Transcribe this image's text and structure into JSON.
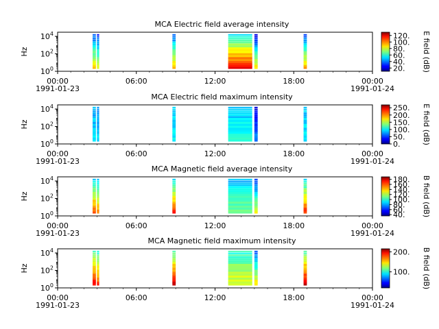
{
  "figure": {
    "x_ticks": [
      "00:00",
      "06:00",
      "12:00",
      "18:00",
      "00:00"
    ],
    "x_start_date": "1991-01-23",
    "x_end_date": "1991-01-24",
    "y_label": "Hz",
    "colormap": "jet"
  },
  "chart_data": [
    {
      "type": "heatmap",
      "title": "MCA  Electric field average intensity",
      "xlabel": "",
      "ylabel": "Hz",
      "ylim": [
        1,
        30000
      ],
      "yscale": "log",
      "yticks": [
        "10^0",
        "10^2",
        "10^4"
      ],
      "xlim": [
        "1991-01-23 00:00",
        "1991-01-24 00:00"
      ],
      "xticks": [
        "00:00",
        "06:00",
        "12:00",
        "18:00",
        "00:00"
      ],
      "colorbar": {
        "label": "E field (dB)",
        "ticks": [
          "20.",
          "40.",
          "60.",
          "80.",
          "100.",
          "120."
        ],
        "range": [
          10,
          130
        ]
      },
      "data_intervals": [
        {
          "start": "02:40",
          "end": "02:55",
          "low_freq_db": 90,
          "high_freq_db": 35
        },
        {
          "start": "03:00",
          "end": "03:10",
          "low_freq_db": 85,
          "high_freq_db": 30
        },
        {
          "start": "08:45",
          "end": "09:00",
          "low_freq_db": 95,
          "high_freq_db": 35
        },
        {
          "start": "13:00",
          "end": "14:50",
          "low_freq_db": 115,
          "high_freq_db": 55
        },
        {
          "start": "15:00",
          "end": "15:15",
          "low_freq_db": 90,
          "high_freq_db": 20
        },
        {
          "start": "18:45",
          "end": "19:00",
          "low_freq_db": 95,
          "high_freq_db": 35
        }
      ]
    },
    {
      "type": "heatmap",
      "title": "MCA  Electric field maximum intensity",
      "xlabel": "",
      "ylabel": "Hz",
      "ylim": [
        1,
        30000
      ],
      "yscale": "log",
      "yticks": [
        "10^0",
        "10^2",
        "10^4"
      ],
      "xlim": [
        "1991-01-23 00:00",
        "1991-01-24 00:00"
      ],
      "xticks": [
        "00:00",
        "06:00",
        "12:00",
        "18:00",
        "00:00"
      ],
      "colorbar": {
        "label": "E field (dB)",
        "ticks": [
          "0.",
          "50.",
          "100.",
          "150.",
          "200.",
          "250."
        ],
        "range": [
          0,
          270
        ]
      },
      "data_intervals": [
        {
          "start": "02:40",
          "end": "02:55",
          "low_freq_db": 95,
          "high_freq_db": 80
        },
        {
          "start": "03:00",
          "end": "03:10",
          "low_freq_db": 90,
          "high_freq_db": 70
        },
        {
          "start": "08:45",
          "end": "09:00",
          "low_freq_db": 100,
          "high_freq_db": 85
        },
        {
          "start": "13:00",
          "end": "14:50",
          "low_freq_db": 110,
          "high_freq_db": 85
        },
        {
          "start": "15:00",
          "end": "15:15",
          "low_freq_db": 70,
          "high_freq_db": 30
        },
        {
          "start": "18:45",
          "end": "19:00",
          "low_freq_db": 100,
          "high_freq_db": 85
        }
      ]
    },
    {
      "type": "heatmap",
      "title": "MCA  Magnetic field average intensity",
      "xlabel": "",
      "ylabel": "Hz",
      "ylim": [
        1,
        30000
      ],
      "yscale": "log",
      "yticks": [
        "10^0",
        "10^2",
        "10^4"
      ],
      "xlim": [
        "1991-01-23 00:00",
        "1991-01-24 00:00"
      ],
      "xticks": [
        "00:00",
        "06:00",
        "12:00",
        "18:00",
        "00:00"
      ],
      "colorbar": {
        "label": "B field (dB)",
        "ticks": [
          "40.",
          "60.",
          "80.",
          "100.",
          "120.",
          "140.",
          "160.",
          "180."
        ],
        "range": [
          35,
          190
        ]
      },
      "data_intervals": [
        {
          "start": "02:40",
          "end": "02:55",
          "low_freq_db": 160,
          "high_freq_db": 90
        },
        {
          "start": "03:00",
          "end": "03:10",
          "low_freq_db": 150,
          "high_freq_db": 85
        },
        {
          "start": "08:45",
          "end": "09:00",
          "low_freq_db": 165,
          "high_freq_db": 90
        },
        {
          "start": "13:00",
          "end": "14:50",
          "low_freq_db": 115,
          "high_freq_db": 80
        },
        {
          "start": "15:00",
          "end": "15:15",
          "low_freq_db": 130,
          "high_freq_db": 60
        },
        {
          "start": "18:45",
          "end": "19:00",
          "low_freq_db": 165,
          "high_freq_db": 90
        }
      ]
    },
    {
      "type": "heatmap",
      "title": "MCA  Magnetic field maximum intensity",
      "xlabel": "",
      "ylabel": "Hz",
      "ylim": [
        1,
        30000
      ],
      "yscale": "log",
      "yticks": [
        "10^0",
        "10^2",
        "10^4"
      ],
      "xlim": [
        "1991-01-23 00:00",
        "1991-01-24 00:00"
      ],
      "xticks": [
        "00:00",
        "06:00",
        "12:00",
        "18:00",
        "00:00"
      ],
      "colorbar": {
        "label": "B field (dB)",
        "ticks": [
          "100.",
          "200."
        ],
        "range": [
          20,
          215
        ]
      },
      "data_intervals": [
        {
          "start": "02:40",
          "end": "02:55",
          "low_freq_db": 190,
          "high_freq_db": 110
        },
        {
          "start": "03:00",
          "end": "03:10",
          "low_freq_db": 180,
          "high_freq_db": 100
        },
        {
          "start": "08:45",
          "end": "09:00",
          "low_freq_db": 200,
          "high_freq_db": 110
        },
        {
          "start": "13:00",
          "end": "14:50",
          "low_freq_db": 140,
          "high_freq_db": 100
        },
        {
          "start": "15:00",
          "end": "15:15",
          "low_freq_db": 150,
          "high_freq_db": 60
        },
        {
          "start": "18:45",
          "end": "19:00",
          "low_freq_db": 200,
          "high_freq_db": 110
        }
      ]
    }
  ]
}
